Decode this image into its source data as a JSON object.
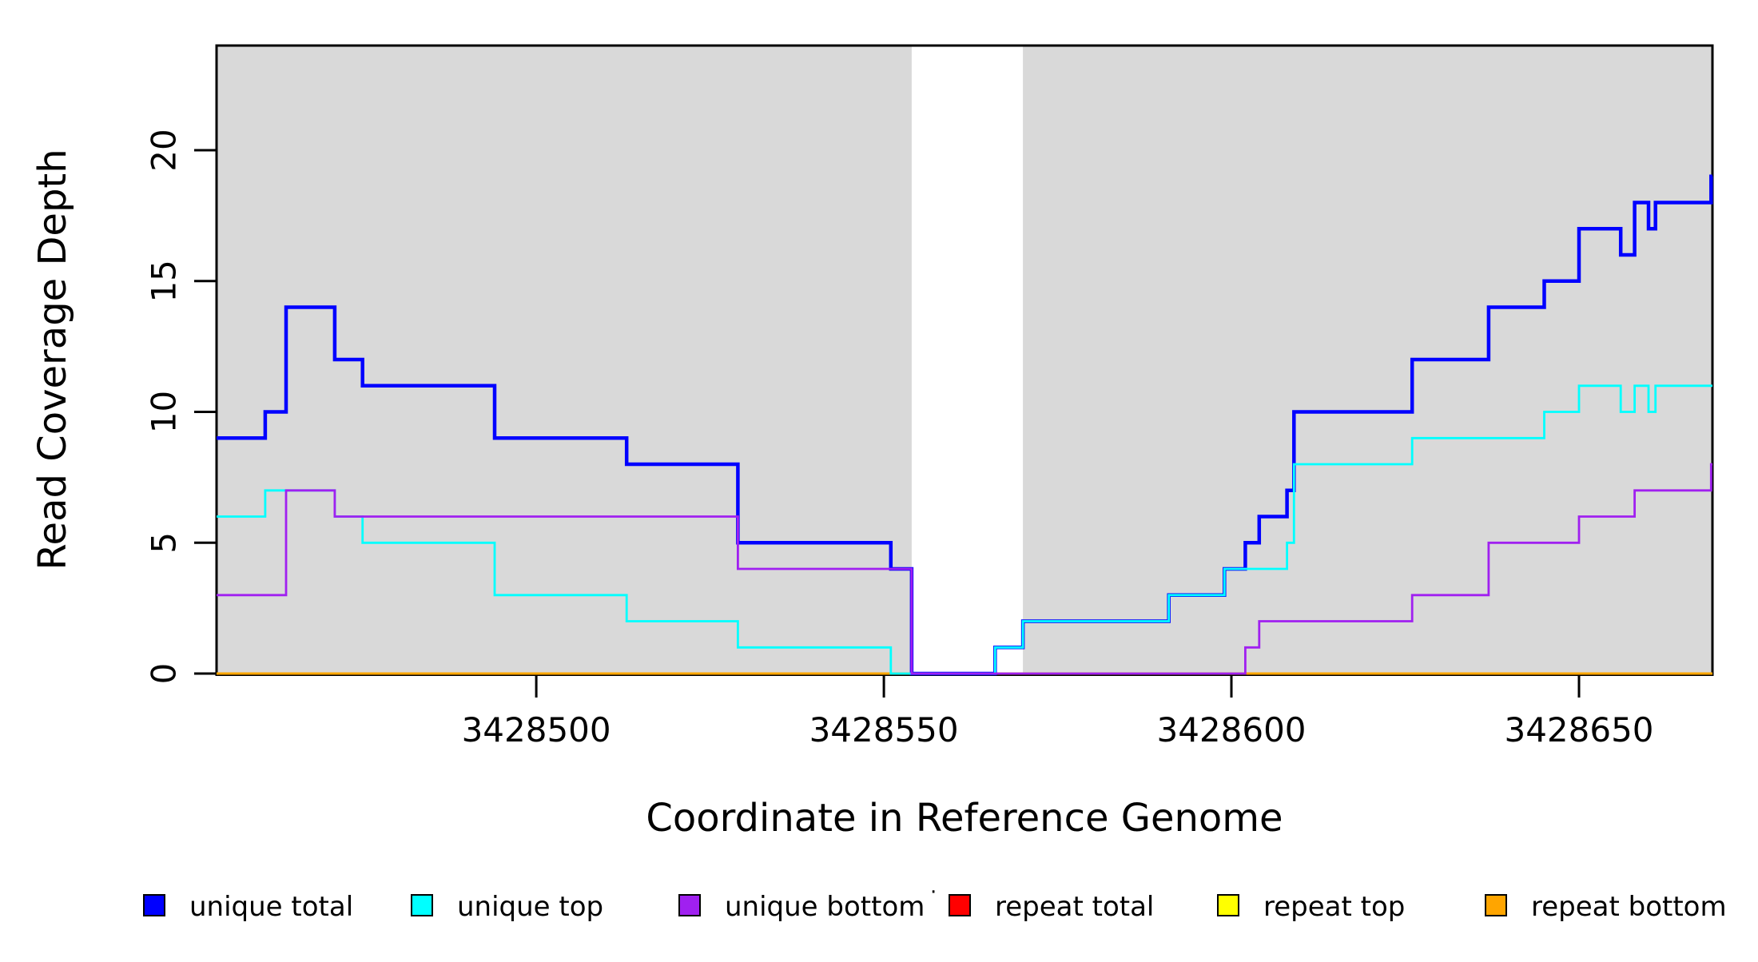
{
  "chart_data": {
    "type": "line",
    "line_style": "step",
    "title": "",
    "xlabel": "Coordinate in Reference Genome",
    "ylabel": "Read Coverage Depth",
    "xlim": [
      3428454,
      3428669.2
    ],
    "ylim": [
      0,
      24
    ],
    "grid": false,
    "legend_position": "bottom",
    "background_color": "#FFFFFF",
    "shading_color": "#D9D9D9",
    "axis_color": "#000000",
    "x_ticks": [
      {
        "value": 3428500,
        "label": "3428500"
      },
      {
        "value": 3428550,
        "label": "3428550"
      },
      {
        "value": 3428600,
        "label": "3428600"
      },
      {
        "value": 3428650,
        "label": "3428650"
      }
    ],
    "y_ticks": [
      {
        "value": 0,
        "label": "0"
      },
      {
        "value": 5,
        "label": "5"
      },
      {
        "value": 10,
        "label": "10"
      },
      {
        "value": 15,
        "label": "15"
      },
      {
        "value": 20,
        "label": "20"
      }
    ],
    "shaded_regions": [
      {
        "x0": 3428454,
        "x1": 3428554
      },
      {
        "x0": 3428570,
        "x1": 3428669.2
      }
    ],
    "series": [
      {
        "name": "repeat total",
        "color": "#FF0000",
        "line_width": 3,
        "draw_order": 1,
        "steps": {
          "x": [
            3428454
          ],
          "y": [
            0
          ]
        }
      },
      {
        "name": "repeat top",
        "color": "#FFFF00",
        "line_width": 3,
        "draw_order": 2,
        "steps": {
          "x": [
            3428454
          ],
          "y": [
            0
          ]
        }
      },
      {
        "name": "repeat bottom",
        "color": "#FFA500",
        "line_width": 3,
        "draw_order": 3,
        "steps": {
          "x": [
            3428454
          ],
          "y": [
            0
          ]
        }
      },
      {
        "name": "unique total",
        "color": "#0000FF",
        "line_width": 4.5,
        "draw_order": 4,
        "steps": {
          "x": [
            3428454,
            3428461,
            3428464,
            3428471,
            3428475,
            3428494,
            3428513,
            3428529,
            3428551,
            3428554,
            3428566,
            3428570,
            3428591,
            3428599,
            3428602,
            3428604,
            3428608,
            3428609,
            3428626,
            3428637,
            3428645,
            3428650,
            3428656,
            3428658,
            3428660,
            3428661,
            3428669
          ],
          "y": [
            9,
            10,
            14,
            12,
            11,
            9,
            8,
            5,
            4,
            0,
            1,
            2,
            3,
            4,
            5,
            6,
            7,
            10,
            12,
            14,
            15,
            17,
            16,
            18,
            17,
            18,
            19
          ]
        }
      },
      {
        "name": "unique top",
        "color": "#00FFFF",
        "line_width": 2.8,
        "draw_order": 5,
        "steps": {
          "x": [
            3428454,
            3428461,
            3428471,
            3428475,
            3428494,
            3428513,
            3428529,
            3428551,
            3428566,
            3428570,
            3428591,
            3428599,
            3428608,
            3428609,
            3428626,
            3428645,
            3428650,
            3428656,
            3428658,
            3428660,
            3428661
          ],
          "y": [
            6,
            7,
            6,
            5,
            3,
            2,
            1,
            0,
            1,
            2,
            3,
            4,
            5,
            8,
            9,
            10,
            11,
            10,
            11,
            10,
            11
          ]
        }
      },
      {
        "name": "unique bottom",
        "color": "#A020F0",
        "line_width": 2.8,
        "draw_order": 6,
        "steps": {
          "x": [
            3428454,
            3428464,
            3428471,
            3428529,
            3428554,
            3428602,
            3428604,
            3428626,
            3428637,
            3428650,
            3428658,
            3428669
          ],
          "y": [
            3,
            7,
            6,
            4,
            0,
            1,
            2,
            3,
            5,
            6,
            7,
            8
          ]
        }
      }
    ],
    "legend": {
      "entries": [
        {
          "label": "unique total",
          "color": "#0000FF"
        },
        {
          "label": "unique top",
          "color": "#00FFFF"
        },
        {
          "label": "unique bottom",
          "color": "#A020F0"
        },
        {
          "label": "repeat total",
          "color": "#FF0000"
        },
        {
          "label": "repeat top",
          "color": "#FFFF00"
        },
        {
          "label": "repeat bottom",
          "color": "#FFA500"
        }
      ],
      "stray_mark": "·"
    }
  }
}
